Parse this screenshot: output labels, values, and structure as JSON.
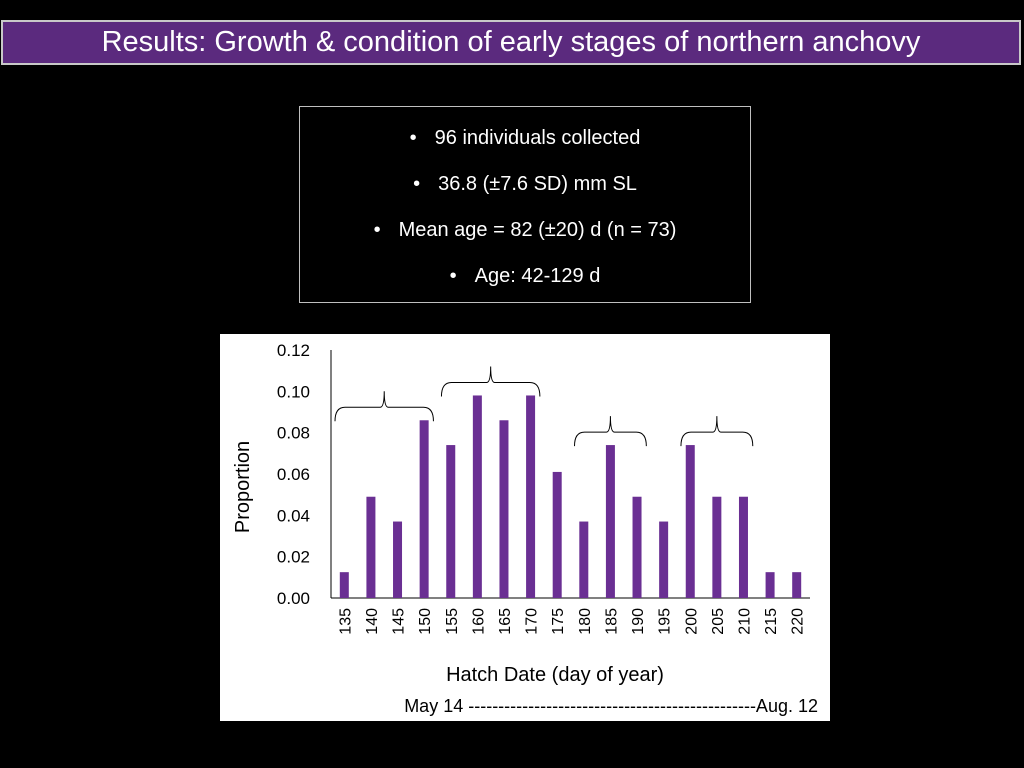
{
  "slide": {
    "title": "Results: Growth & condition of early stages of northern anchovy"
  },
  "bullets": [
    {
      "text": "96 individuals collected"
    },
    {
      "text": "36.8 (±7.6 SD) mm SL"
    },
    {
      "text": "Mean age = 82 (±20) d (n = 73)"
    },
    {
      "text": "Age: 42-129 d"
    }
  ],
  "chart_data": {
    "type": "bar",
    "categories": [
      "135",
      "140",
      "145",
      "150",
      "155",
      "160",
      "165",
      "170",
      "175",
      "180",
      "185",
      "190",
      "195",
      "200",
      "205",
      "210",
      "215",
      "220"
    ],
    "values": [
      0.0125,
      0.049,
      0.037,
      0.086,
      0.074,
      0.098,
      0.086,
      0.098,
      0.061,
      0.037,
      0.074,
      0.049,
      0.037,
      0.074,
      0.049,
      0.049,
      0.0125,
      0.0125
    ],
    "xlabel": "Hatch Date (day of year)",
    "ylabel": "Proportion",
    "ylim": [
      0,
      0.12
    ],
    "yticks": [
      "0.00",
      "0.02",
      "0.04",
      "0.06",
      "0.08",
      "0.10",
      "0.12"
    ],
    "bar_color": "#6a2f93",
    "grid": false,
    "annotations": {
      "cohort_brackets": [
        {
          "from": "135",
          "to": "150"
        },
        {
          "from": "155",
          "to": "170"
        },
        {
          "from": "180",
          "to": "190"
        },
        {
          "from": "200",
          "to": "210"
        }
      ],
      "date_range_note": "May 14 ------------------------------------------------Aug. 12"
    }
  },
  "colors": {
    "background": "#000000",
    "title_bar": "#5b2a7e",
    "bar": "#6a2f93"
  }
}
